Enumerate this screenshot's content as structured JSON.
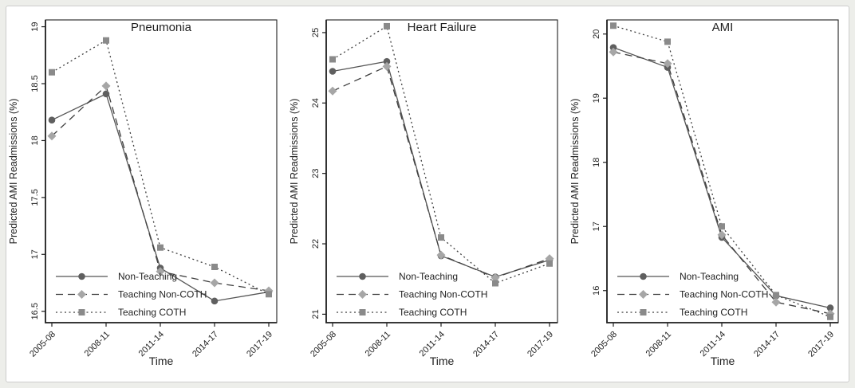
{
  "figure": {
    "xlabel": "Time",
    "ylabel": "Predicted AMI Readmissions (%)"
  },
  "colors": {
    "page_background": "#edeeea",
    "figure_background": "#ffffff",
    "frame_border": "#cccccc",
    "axis": "#1f1f1f",
    "non_teaching_marker": "#5f5f5f",
    "teaching_non_coth_marker": "#a6a6a6",
    "teaching_coth_marker": "#8a8a8a",
    "solid_line": "#555555",
    "dash_line": "#3f3f3f"
  },
  "chart_data": [
    {
      "type": "line",
      "title": "Pneumonia",
      "xlabel": "Time",
      "ylabel": "Predicted AMI Readmissions (%)",
      "categories": [
        "2005-08",
        "2008-11",
        "2011-14",
        "2014-17",
        "2017-19"
      ],
      "ylim": [
        16.4,
        19.06
      ],
      "yticks": [
        16.5,
        17,
        17.5,
        18,
        18.5,
        19
      ],
      "grid": false,
      "legend_position": "bottom-left",
      "series": [
        {
          "name": "Non-Teaching",
          "marker": "circle",
          "line_style": "solid",
          "marker_color": "#5f5f5f",
          "line_color": "#555555",
          "values": [
            18.18,
            18.41,
            16.88,
            16.59,
            16.67
          ]
        },
        {
          "name": "Teaching Non-COTH",
          "marker": "diamond",
          "line_style": "dashed",
          "marker_color": "#a6a6a6",
          "line_color": "#3f3f3f",
          "values": [
            18.04,
            18.48,
            16.85,
            16.75,
            16.68
          ]
        },
        {
          "name": "Teaching COTH",
          "marker": "square",
          "line_style": "dotted",
          "marker_color": "#8a8a8a",
          "line_color": "#3f3f3f",
          "values": [
            18.6,
            18.88,
            17.06,
            16.89,
            16.65
          ]
        }
      ]
    },
    {
      "type": "line",
      "title": "Heart Failure",
      "xlabel": "Time",
      "ylabel": "Predicted AMI Readmissions (%)",
      "categories": [
        "2005-08",
        "2008-11",
        "2011-14",
        "2014-17",
        "2017-19"
      ],
      "ylim": [
        20.88,
        25.18
      ],
      "yticks": [
        21,
        22,
        23,
        24,
        25
      ],
      "grid": false,
      "legend_position": "bottom-left",
      "series": [
        {
          "name": "Non-Teaching",
          "marker": "circle",
          "line_style": "solid",
          "marker_color": "#5f5f5f",
          "line_color": "#555555",
          "values": [
            24.45,
            24.59,
            21.83,
            21.53,
            21.77
          ]
        },
        {
          "name": "Teaching Non-COTH",
          "marker": "diamond",
          "line_style": "dashed",
          "marker_color": "#a6a6a6",
          "line_color": "#3f3f3f",
          "values": [
            24.17,
            24.52,
            21.84,
            21.52,
            21.79
          ]
        },
        {
          "name": "Teaching COTH",
          "marker": "square",
          "line_style": "dotted",
          "marker_color": "#8a8a8a",
          "line_color": "#3f3f3f",
          "values": [
            24.62,
            25.09,
            22.09,
            21.44,
            21.72
          ]
        }
      ]
    },
    {
      "type": "line",
      "title": "AMI",
      "xlabel": "Time",
      "ylabel": "Predicted AMI Readmissions (%)",
      "categories": [
        "2005-08",
        "2008-11",
        "2011-14",
        "2014-17",
        "2017-19"
      ],
      "ylim": [
        15.5,
        20.22
      ],
      "yticks": [
        16,
        17,
        18,
        19,
        20
      ],
      "grid": false,
      "legend_position": "bottom-left",
      "series": [
        {
          "name": "Non-Teaching",
          "marker": "circle",
          "line_style": "solid",
          "marker_color": "#5f5f5f",
          "line_color": "#555555",
          "values": [
            19.79,
            19.48,
            16.83,
            15.92,
            15.73
          ]
        },
        {
          "name": "Teaching Non-COTH",
          "marker": "diamond",
          "line_style": "dashed",
          "marker_color": "#a6a6a6",
          "line_color": "#3f3f3f",
          "values": [
            19.72,
            19.54,
            16.87,
            15.82,
            15.64
          ]
        },
        {
          "name": "Teaching COTH",
          "marker": "square",
          "line_style": "dotted",
          "marker_color": "#8a8a8a",
          "line_color": "#3f3f3f",
          "values": [
            20.13,
            19.88,
            17.0,
            15.93,
            15.59
          ]
        }
      ]
    }
  ]
}
